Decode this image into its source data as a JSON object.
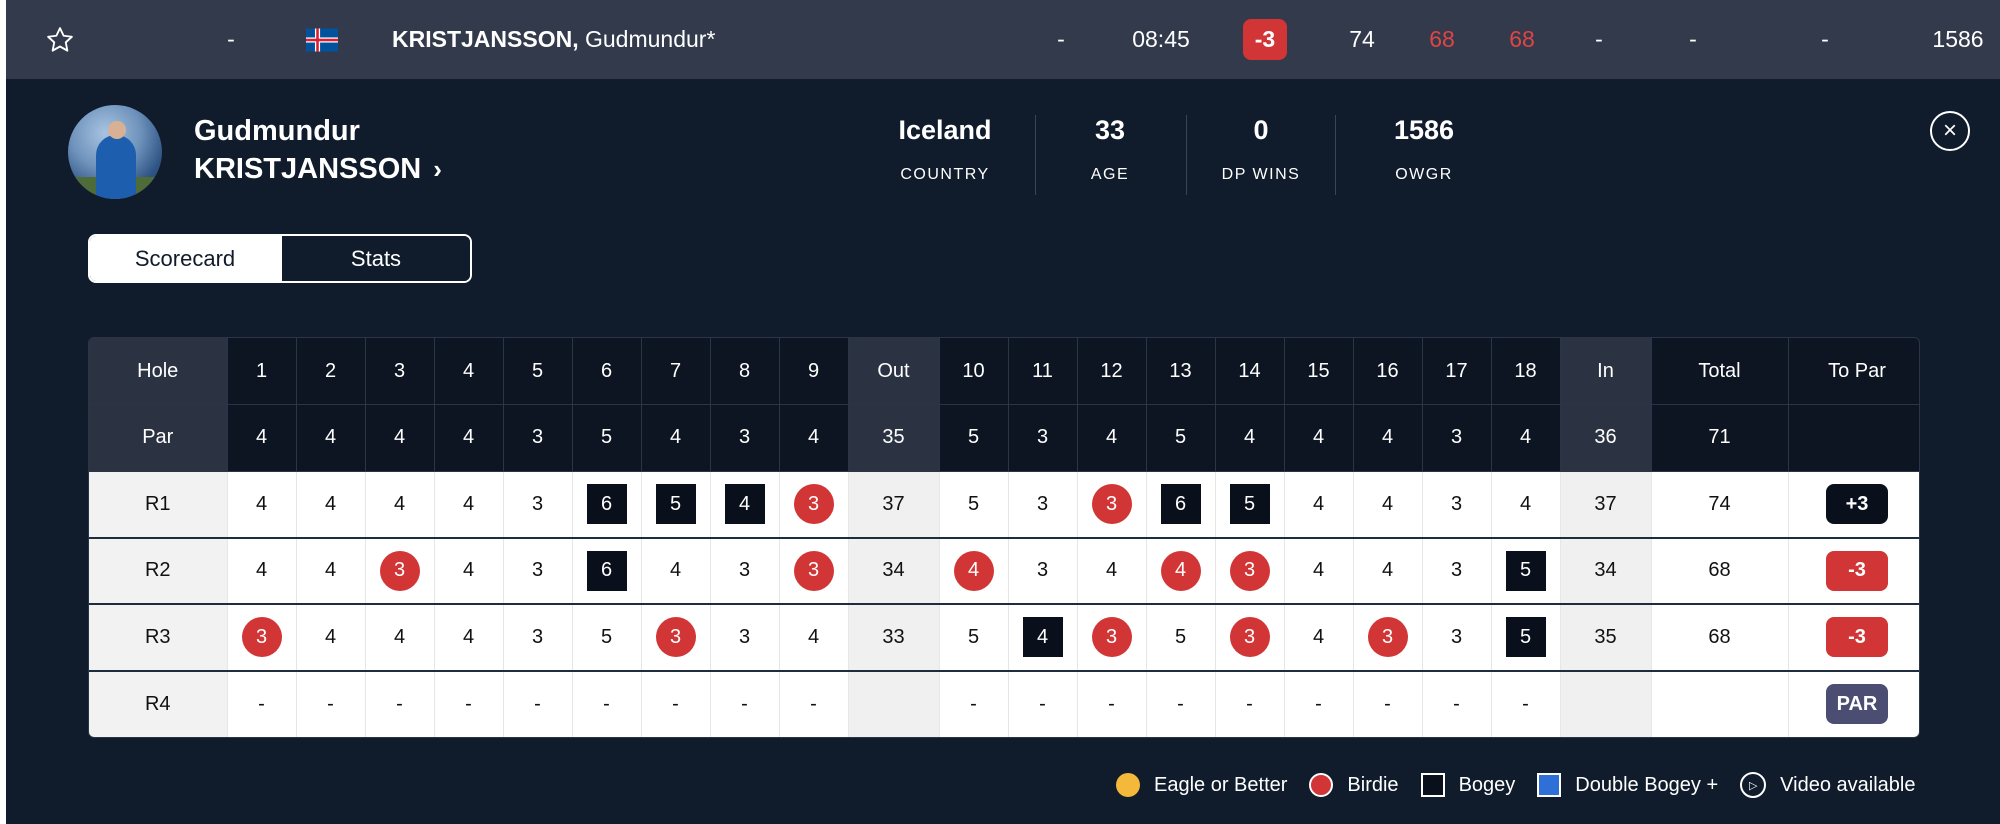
{
  "top": {
    "position": "-",
    "name_last": "KRISTJANSSON,",
    "name_first": "Gudmundur*",
    "thru": "-",
    "tee_time": "08:45",
    "to_par": "-3",
    "rounds": [
      "74",
      "68",
      "68"
    ],
    "r4": "-",
    "extra1": "-",
    "extra2": "-",
    "owgr": "1586"
  },
  "player": {
    "first_name": "Gudmundur",
    "last_name": "KRISTJANSSON",
    "stats": [
      {
        "value": "Iceland",
        "label": "COUNTRY"
      },
      {
        "value": "33",
        "label": "AGE"
      },
      {
        "value": "0",
        "label": "DP WINS"
      },
      {
        "value": "1586",
        "label": "OWGR"
      }
    ]
  },
  "tabs": [
    "Scorecard",
    "Stats"
  ],
  "scorecard": {
    "header": [
      "Hole",
      "1",
      "2",
      "3",
      "4",
      "5",
      "6",
      "7",
      "8",
      "9",
      "Out",
      "10",
      "11",
      "12",
      "13",
      "14",
      "15",
      "16",
      "17",
      "18",
      "In",
      "Total",
      "To Par"
    ],
    "par": [
      "Par",
      "4",
      "4",
      "4",
      "4",
      "3",
      "5",
      "4",
      "3",
      "4",
      "35",
      "5",
      "3",
      "4",
      "5",
      "4",
      "4",
      "4",
      "3",
      "4",
      "36",
      "71",
      ""
    ],
    "rounds": [
      {
        "label": "R1",
        "cells": [
          [
            "4",
            ""
          ],
          [
            "4",
            ""
          ],
          [
            "4",
            ""
          ],
          [
            "4",
            ""
          ],
          [
            "3",
            ""
          ],
          [
            "6",
            "bogey"
          ],
          [
            "5",
            "bogey"
          ],
          [
            "4",
            "bogey"
          ],
          [
            "3",
            "birdie"
          ],
          [
            "37",
            "sum"
          ],
          [
            "5",
            ""
          ],
          [
            "3",
            ""
          ],
          [
            "3",
            "birdie"
          ],
          [
            "6",
            "bogey"
          ],
          [
            "5",
            "bogey"
          ],
          [
            "4",
            ""
          ],
          [
            "4",
            ""
          ],
          [
            "3",
            ""
          ],
          [
            "4",
            ""
          ],
          [
            "37",
            "sum"
          ],
          [
            "74",
            "total"
          ]
        ],
        "to_par": "+3",
        "to_par_type": "over"
      },
      {
        "label": "R2",
        "cells": [
          [
            "4",
            ""
          ],
          [
            "4",
            ""
          ],
          [
            "3",
            "birdie"
          ],
          [
            "4",
            ""
          ],
          [
            "3",
            ""
          ],
          [
            "6",
            "bogey"
          ],
          [
            "4",
            ""
          ],
          [
            "3",
            ""
          ],
          [
            "3",
            "birdie"
          ],
          [
            "34",
            "sum"
          ],
          [
            "4",
            "birdie"
          ],
          [
            "3",
            ""
          ],
          [
            "4",
            ""
          ],
          [
            "4",
            "birdie"
          ],
          [
            "3",
            "birdie"
          ],
          [
            "4",
            ""
          ],
          [
            "4",
            ""
          ],
          [
            "3",
            ""
          ],
          [
            "5",
            "bogey"
          ],
          [
            "34",
            "sum"
          ],
          [
            "68",
            "total"
          ]
        ],
        "to_par": "-3",
        "to_par_type": "under"
      },
      {
        "label": "R3",
        "cells": [
          [
            "3",
            "birdie"
          ],
          [
            "4",
            ""
          ],
          [
            "4",
            ""
          ],
          [
            "4",
            ""
          ],
          [
            "3",
            ""
          ],
          [
            "5",
            ""
          ],
          [
            "3",
            "birdie"
          ],
          [
            "3",
            ""
          ],
          [
            "4",
            ""
          ],
          [
            "33",
            "sum"
          ],
          [
            "5",
            ""
          ],
          [
            "4",
            "bogey"
          ],
          [
            "3",
            "birdie"
          ],
          [
            "5",
            ""
          ],
          [
            "3",
            "birdie"
          ],
          [
            "4",
            ""
          ],
          [
            "3",
            "birdie"
          ],
          [
            "3",
            ""
          ],
          [
            "5",
            "bogey"
          ],
          [
            "35",
            "sum"
          ],
          [
            "68",
            "total"
          ]
        ],
        "to_par": "-3",
        "to_par_type": "under"
      },
      {
        "label": "R4",
        "cells": [
          [
            "-",
            ""
          ],
          [
            "-",
            ""
          ],
          [
            "-",
            ""
          ],
          [
            "-",
            ""
          ],
          [
            "-",
            ""
          ],
          [
            "-",
            ""
          ],
          [
            "-",
            ""
          ],
          [
            "-",
            ""
          ],
          [
            "-",
            ""
          ],
          [
            "",
            "sum"
          ],
          [
            "-",
            ""
          ],
          [
            "-",
            ""
          ],
          [
            "-",
            ""
          ],
          [
            "-",
            ""
          ],
          [
            "-",
            ""
          ],
          [
            "-",
            ""
          ],
          [
            "-",
            ""
          ],
          [
            "-",
            ""
          ],
          [
            "-",
            ""
          ],
          [
            "",
            "sum"
          ],
          [
            "",
            "total"
          ]
        ],
        "to_par": "PAR",
        "to_par_type": "even"
      }
    ]
  },
  "legend": [
    {
      "label": "Eagle or Better",
      "icon": "eagle-dot-icon"
    },
    {
      "label": "Birdie",
      "icon": "birdie-dot-icon"
    },
    {
      "label": "Bogey",
      "icon": "bogey-square-icon"
    },
    {
      "label": "Double Bogey +",
      "icon": "double-bogey-square-icon"
    },
    {
      "label": "Video available",
      "icon": "play-circle-icon"
    }
  ],
  "colors": {
    "birdie": "#d23535",
    "bogey": "#0a0f1c",
    "eagle": "#f4b93a",
    "double_bogey": "#2f6fd8",
    "panel": "#101b2c"
  }
}
